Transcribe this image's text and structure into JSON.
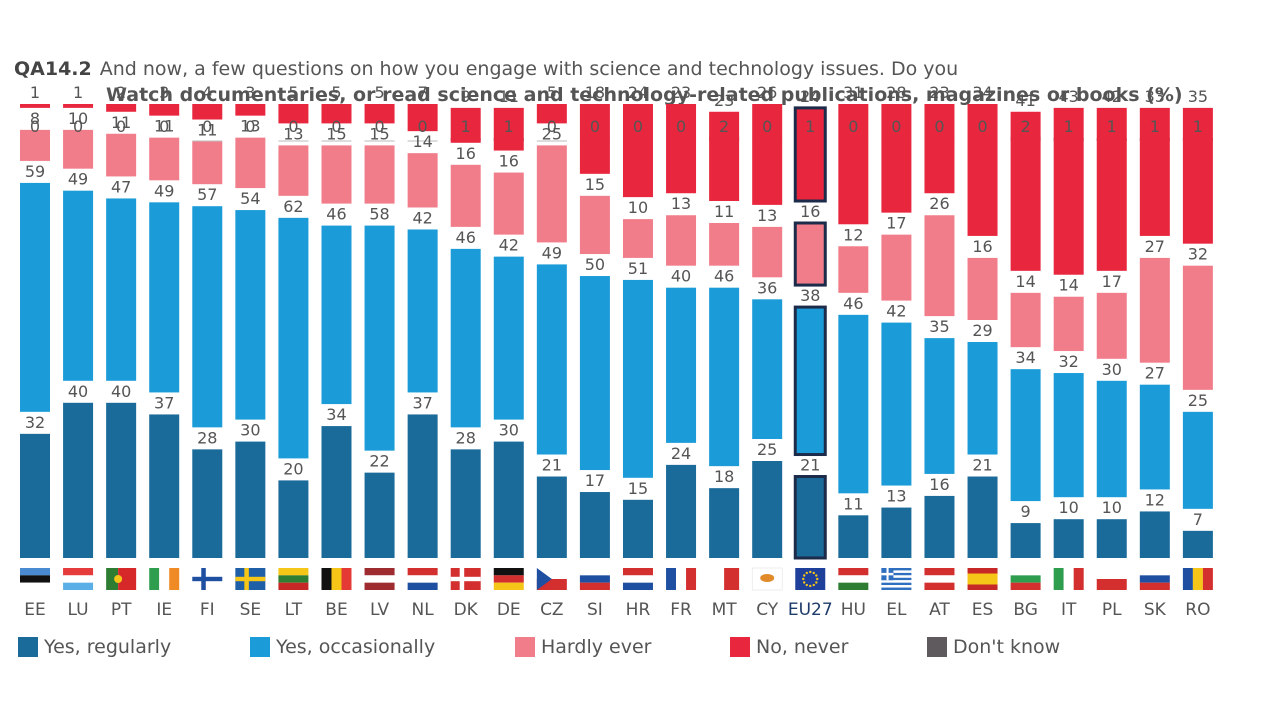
{
  "title": {
    "code": "QA14.2",
    "line1": "And now, a few questions on how you engage with science and technology issues. Do you",
    "line2": "Watch documentaries, or read science and technology-related publications, magazines or books (%)"
  },
  "chart_data": {
    "type": "bar",
    "stacked": true,
    "categories": [
      "EE",
      "LU",
      "PT",
      "IE",
      "FI",
      "SE",
      "LT",
      "BE",
      "LV",
      "NL",
      "DK",
      "DE",
      "CZ",
      "SI",
      "HR",
      "FR",
      "MT",
      "CY",
      "EU27",
      "HU",
      "EL",
      "AT",
      "ES",
      "BG",
      "IT",
      "PL",
      "SK",
      "RO"
    ],
    "highlight": "EU27",
    "series": [
      {
        "name": "Yes, regularly",
        "color": "#1a6a9a",
        "values": [
          32,
          40,
          40,
          37,
          28,
          30,
          20,
          34,
          22,
          37,
          28,
          30,
          21,
          17,
          15,
          24,
          18,
          25,
          21,
          11,
          13,
          16,
          21,
          9,
          10,
          10,
          12,
          7
        ]
      },
      {
        "name": "Yes, occasionally",
        "color": "#1b9cd8",
        "values": [
          59,
          49,
          47,
          49,
          57,
          54,
          62,
          46,
          58,
          42,
          46,
          42,
          49,
          50,
          51,
          40,
          46,
          36,
          38,
          46,
          42,
          35,
          29,
          34,
          32,
          30,
          27,
          25
        ]
      },
      {
        "name": "Hardly ever",
        "color": "#f27d8a",
        "values": [
          8,
          10,
          11,
          11,
          11,
          13,
          13,
          15,
          15,
          14,
          16,
          16,
          25,
          15,
          10,
          13,
          11,
          13,
          16,
          12,
          17,
          26,
          16,
          14,
          14,
          17,
          27,
          32
        ]
      },
      {
        "name": "No, never",
        "color": "#e8273f",
        "values": [
          1,
          1,
          2,
          3,
          4,
          3,
          5,
          5,
          5,
          7,
          9,
          11,
          5,
          18,
          24,
          23,
          23,
          26,
          24,
          31,
          28,
          23,
          34,
          41,
          43,
          42,
          33,
          35
        ]
      },
      {
        "name": "Don't know",
        "color": "#5f5a5d",
        "values": [
          0,
          0,
          0,
          0,
          0,
          0,
          0,
          0,
          0,
          0,
          1,
          1,
          0,
          0,
          0,
          0,
          2,
          0,
          1,
          0,
          0,
          0,
          0,
          2,
          1,
          1,
          1,
          1
        ]
      }
    ],
    "ylim": [
      0,
      100
    ],
    "xlabel": "",
    "ylabel": ""
  },
  "flags": {
    "EE": [
      [
        "#4a8ad0",
        "#111111",
        "#ffffff"
      ],
      "h"
    ],
    "LU": [
      [
        "#e53b3b",
        "#ffffff",
        "#5ab0e6"
      ],
      "h"
    ],
    "PT": [
      [
        "#2e7d32",
        "#d62828",
        "#d62828"
      ],
      "v2"
    ],
    "IE": [
      [
        "#2e9d4e",
        "#ffffff",
        "#f08a24"
      ],
      "v"
    ],
    "FI": "fi",
    "SE": "se",
    "LT": [
      [
        "#f5c518",
        "#2e7d32",
        "#c62828"
      ],
      "h"
    ],
    "BE": [
      [
        "#111111",
        "#f5c518",
        "#e53935"
      ],
      "v"
    ],
    "LV": [
      [
        "#9e2b2f",
        "#ffffff",
        "#9e2b2f"
      ],
      "h"
    ],
    "NL": [
      [
        "#d32f2f",
        "#ffffff",
        "#1e4fa0"
      ],
      "h"
    ],
    "DK": "dk",
    "DE": [
      [
        "#111111",
        "#d32f2f",
        "#f5c518"
      ],
      "h"
    ],
    "CZ": "cz",
    "SI": [
      [
        "#ffffff",
        "#1e4fa0",
        "#d32f2f"
      ],
      "h"
    ],
    "HR": [
      [
        "#d32f2f",
        "#ffffff",
        "#1e4fa0"
      ],
      "h"
    ],
    "FR": [
      [
        "#1e4fa0",
        "#ffffff",
        "#d32f2f"
      ],
      "v"
    ],
    "MT": [
      [
        "#ffffff",
        "#d32f2f"
      ],
      "v"
    ],
    "CY": "cy",
    "EU27": "eu",
    "HU": [
      [
        "#d32f2f",
        "#ffffff",
        "#2e7d32"
      ],
      "h"
    ],
    "EL": "el",
    "AT": [
      [
        "#d32f2f",
        "#ffffff",
        "#d32f2f"
      ],
      "h"
    ],
    "ES": [
      [
        "#c62828",
        "#f5c518",
        "#f5c518",
        "#c62828"
      ],
      "h"
    ],
    "BG": [
      [
        "#ffffff",
        "#2e9d4e",
        "#d32f2f"
      ],
      "h"
    ],
    "IT": [
      [
        "#2e9d4e",
        "#ffffff",
        "#d32f2f"
      ],
      "v"
    ],
    "PL": [
      [
        "#ffffff",
        "#d32f2f"
      ],
      "h"
    ],
    "SK": [
      [
        "#ffffff",
        "#1e4fa0",
        "#d32f2f"
      ],
      "h"
    ],
    "RO": [
      [
        "#1e4fa0",
        "#f5c518",
        "#d32f2f"
      ],
      "v"
    ]
  }
}
